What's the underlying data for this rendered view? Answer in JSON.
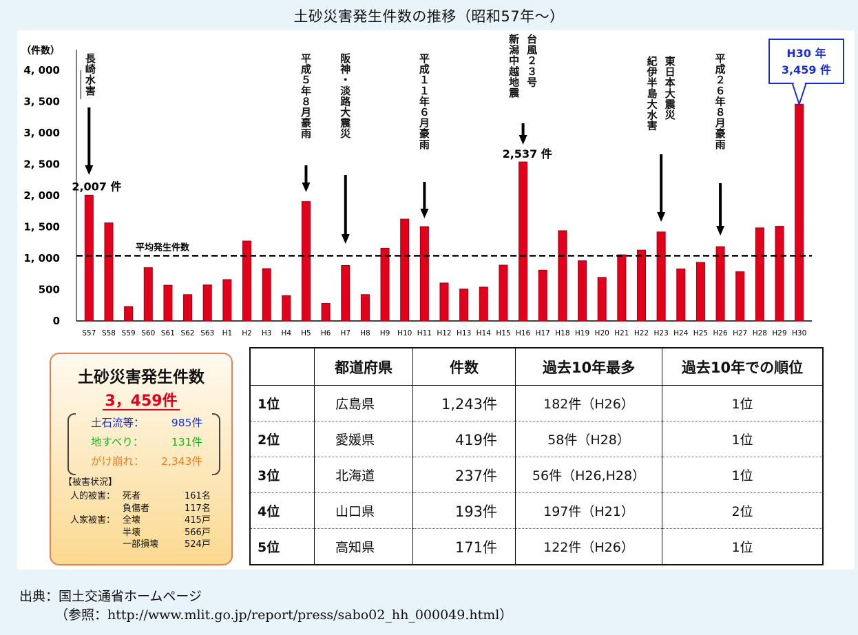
{
  "title": "土砂災害発生件数の推移（昭和57年〜）",
  "chart_data": {
    "type": "bar",
    "y_unit_label": "（件数）",
    "ylim": [
      0,
      4000
    ],
    "yticks": [
      0,
      500,
      1000,
      1500,
      2000,
      2500,
      3000,
      3500,
      4000
    ],
    "ytick_labels": [
      "0",
      "500",
      "1, 000",
      "1, 500",
      "2, 000",
      "2, 500",
      "3, 000",
      "3, 500",
      "4, 000"
    ],
    "categories": [
      "S57",
      "S58",
      "S59",
      "S60",
      "S61",
      "S62",
      "S63",
      "H1",
      "H2",
      "H3",
      "H4",
      "H5",
      "H6",
      "H7",
      "H8",
      "H9",
      "H10",
      "H11",
      "H12",
      "H13",
      "H14",
      "H15",
      "H16",
      "H17",
      "H18",
      "H19",
      "H20",
      "H21",
      "H22",
      "H23",
      "H24",
      "H25",
      "H26",
      "H27",
      "H28",
      "H29",
      "H30"
    ],
    "values": [
      2007,
      1565,
      230,
      850,
      570,
      420,
      575,
      660,
      1275,
      835,
      405,
      1905,
      280,
      885,
      420,
      1160,
      1625,
      1505,
      605,
      510,
      540,
      890,
      2537,
      810,
      1440,
      960,
      695,
      1055,
      1130,
      1420,
      830,
      935,
      1185,
      785,
      1485,
      1510,
      3459
    ],
    "average": {
      "label": "平均発生件数",
      "value": 1040
    },
    "bar_color": "#e3001b",
    "data_labels": [
      {
        "category": "S57",
        "text": "2,007 件"
      },
      {
        "category": "H16",
        "text": "2,537 件"
      }
    ],
    "highlight": {
      "category": "H30",
      "line1": "H30 年",
      "line2": "3,459 件",
      "color": "#1a2fd0"
    },
    "annotations": [
      {
        "text": "長崎水害",
        "category": "S57"
      },
      {
        "text": "平成５年８月豪雨",
        "category": "H5"
      },
      {
        "text": "阪神・淡路大震災",
        "category": "H7"
      },
      {
        "text": "平成１１年６月豪雨",
        "category": "H11"
      },
      {
        "text": "新潟中越地震",
        "category": "H16"
      },
      {
        "text": "台風２３号",
        "category": "H16"
      },
      {
        "text": "東日本大震災",
        "category": "H23"
      },
      {
        "text": "紀伊半島大水害",
        "category": "H23"
      },
      {
        "text": "平成２６年８月豪雨",
        "category": "H26"
      }
    ]
  },
  "summary": {
    "title": "土砂災害発生件数",
    "total": "3，459件",
    "breakdown": [
      {
        "label": "土石流等：",
        "value": "985件",
        "color": "#1530c8"
      },
      {
        "label": "地すべり：",
        "value": "131件",
        "color": "#16b51c"
      },
      {
        "label": "がけ崩れ：",
        "value": "2,343件",
        "color": "#f07d1a"
      }
    ],
    "damage_title": "【被害状況】",
    "damage": [
      {
        "group": "人的被害：",
        "item": "死者",
        "value": "161名"
      },
      {
        "group": "",
        "item": "負傷者",
        "value": "117名"
      },
      {
        "group": "人家被害：",
        "item": "全壊",
        "value": "415戸"
      },
      {
        "group": "",
        "item": "半壊",
        "value": "566戸"
      },
      {
        "group": "",
        "item": "一部損壊",
        "value": "524戸"
      }
    ]
  },
  "ranking": {
    "headers": [
      "",
      "都道府県",
      "件数",
      "過去10年最多",
      "過去10年での順位"
    ],
    "rows": [
      {
        "rank": "1位",
        "pref": "広島県",
        "count": "1,243件",
        "max": "182件（H26）",
        "pos": "1位"
      },
      {
        "rank": "2位",
        "pref": "愛媛県",
        "count": "419件",
        "max": "58件（H28）",
        "pos": "1位"
      },
      {
        "rank": "3位",
        "pref": "北海道",
        "count": "237件",
        "max": "56件（H26,H28）",
        "pos": "1位"
      },
      {
        "rank": "4位",
        "pref": "山口県",
        "count": "193件",
        "max": "197件（H21）",
        "pos": "2位"
      },
      {
        "rank": "5位",
        "pref": "高知県",
        "count": "171件",
        "max": "122件（H26）",
        "pos": "1位"
      }
    ]
  },
  "source": {
    "line1": "出典：国土交通省ホームページ",
    "line2": "（参照：http://www.mlit.go.jp/report/press/sabo02_hh_000049.html）"
  }
}
